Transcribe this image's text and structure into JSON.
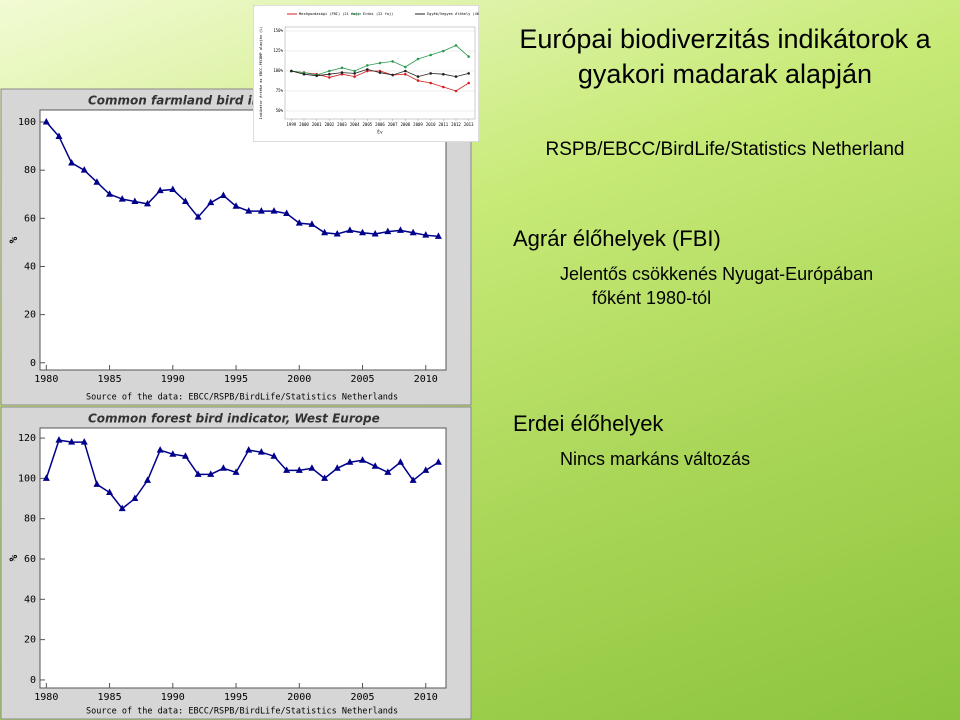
{
  "slide": {
    "title": "Európai biodiverzitás indikátorok a gyakori madarak alapján",
    "subtitle": "RSPB/EBCC/BirdLife/Statistics Netherland",
    "sections": [
      {
        "heading": "Agrár élőhelyek (FBI)",
        "text": "Jelentős csökkenés Nyugat-Európában főként 1980-tól"
      },
      {
        "heading": "Erdei élőhelyek",
        "text": "Nincs markáns változás"
      }
    ]
  },
  "chart_data": [
    {
      "type": "line",
      "title": "Common farmland bird indicator, West Europe",
      "y_label": "%",
      "source": "Source of the data: EBCC/RSPB/BirdLife/Statistics Netherlands",
      "x": [
        1980,
        1981,
        1982,
        1983,
        1984,
        1985,
        1986,
        1987,
        1988,
        1989,
        1990,
        1991,
        1992,
        1993,
        1994,
        1995,
        1996,
        1997,
        1998,
        1999,
        2000,
        2001,
        2002,
        2003,
        2004,
        2005,
        2006,
        2007,
        2008,
        2009,
        2010,
        2011
      ],
      "values": [
        100,
        94,
        83,
        80,
        75,
        70,
        68,
        67,
        66,
        71.5,
        72,
        67,
        60.5,
        66.5,
        69.5,
        65,
        63,
        63,
        63,
        62,
        58,
        57.5,
        54,
        53.5,
        55,
        54,
        53.5,
        54.5,
        55,
        54,
        53,
        52.5
      ],
      "color": "#00008b",
      "xlim": [
        1979.5,
        2011.6
      ],
      "xticks": [
        1980,
        1985,
        1990,
        1995,
        2000,
        2005,
        2010
      ],
      "ylim": [
        -3,
        105
      ],
      "yticks": [
        0,
        20,
        40,
        60,
        80,
        100
      ]
    },
    {
      "type": "line",
      "title": "Common forest bird indicator, West Europe",
      "y_label": "%",
      "source": "Source of the data: EBCC/RSPB/BirdLife/Statistics Netherlands",
      "x": [
        1980,
        1981,
        1982,
        1983,
        1984,
        1985,
        1986,
        1987,
        1988,
        1989,
        1990,
        1991,
        1992,
        1993,
        1994,
        1995,
        1996,
        1997,
        1998,
        1999,
        2000,
        2001,
        2002,
        2003,
        2004,
        2005,
        2006,
        2007,
        2008,
        2009,
        2010,
        2011
      ],
      "values": [
        100,
        119,
        118,
        118,
        97,
        93,
        85,
        90,
        99,
        114,
        112,
        111,
        102,
        102,
        105,
        103,
        114,
        113,
        111,
        104,
        104,
        105,
        100,
        105,
        108,
        109,
        106,
        103,
        108,
        99,
        104,
        108
      ],
      "color": "#00008b",
      "xlim": [
        1979.5,
        2011.6
      ],
      "xticks": [
        1980,
        1985,
        1990,
        1995,
        2000,
        2005,
        2010
      ],
      "ylim": [
        -4,
        125
      ],
      "yticks": [
        0,
        20,
        40,
        60,
        80,
        100,
        120
      ]
    },
    {
      "type": "line",
      "x_label": "Év",
      "y_label": "Indikátor értéke az EBCC-PECBMP alapján (%)",
      "x": [
        1999,
        2000,
        2001,
        2002,
        2003,
        2004,
        2005,
        2006,
        2007,
        2008,
        2009,
        2010,
        2011,
        2012,
        2013
      ],
      "series": [
        {
          "name": "Mezőgazdasági (FBI) (21 faj)",
          "color": "#d42020",
          "values": [
            100,
            98,
            96,
            92,
            96,
            93,
            100,
            100,
            95,
            96,
            88,
            85,
            80,
            75,
            85
          ]
        },
        {
          "name": "Erdei (22 faj)",
          "color": "#2a9a50",
          "values": [
            100,
            98,
            95,
            100,
            104,
            100,
            107,
            110,
            112,
            105,
            115,
            120,
            125,
            132,
            118
          ]
        },
        {
          "name": "Egyéb/Vegyes élőhely (46 faj)",
          "color": "#222222",
          "values": [
            100,
            96,
            94,
            96,
            98,
            97,
            102,
            98,
            95,
            100,
            93,
            97,
            96,
            93,
            97
          ]
        }
      ],
      "xlim": [
        1998.5,
        2013.5
      ],
      "xticks": [
        1999,
        2000,
        2001,
        2002,
        2003,
        2004,
        2005,
        2006,
        2007,
        2008,
        2009,
        2010,
        2011,
        2012,
        2013
      ],
      "ylim": [
        40,
        155
      ],
      "yticks": [
        {
          "value": 50,
          "label": "50%"
        },
        {
          "value": 75,
          "label": "75%"
        },
        {
          "value": 100,
          "label": "100%"
        },
        {
          "value": 125,
          "label": "125%"
        },
        {
          "value": 150,
          "label": "150%"
        }
      ]
    }
  ]
}
